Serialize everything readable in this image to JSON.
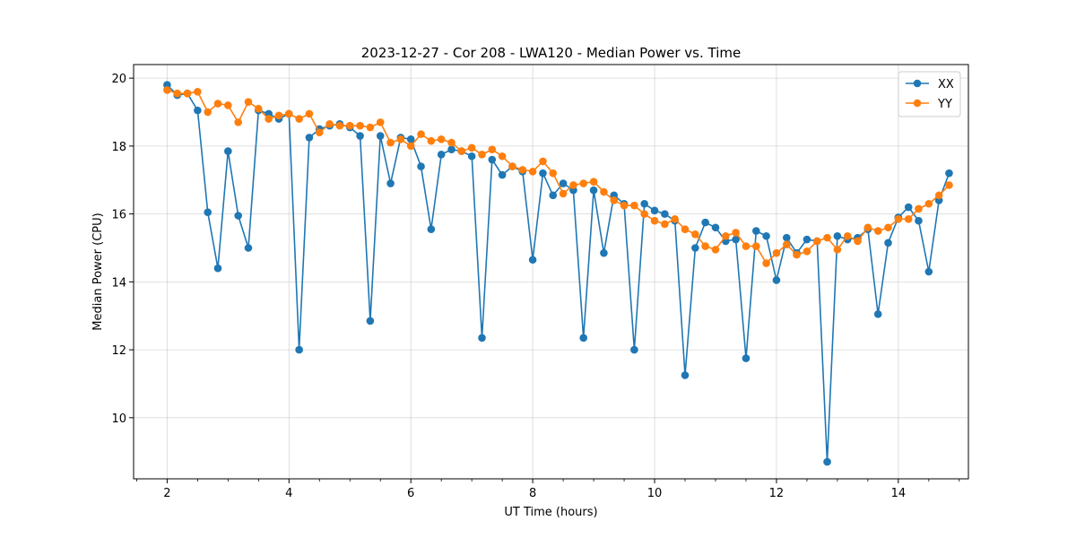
{
  "chart_data": {
    "type": "line",
    "title": "2023-12-27 - Cor 208 - LWA120 - Median Power vs. Time",
    "xlabel": "UT Time (hours)",
    "ylabel": "Median Power (CPU)",
    "xlim": [
      1.45,
      15.15
    ],
    "ylim": [
      8.2,
      20.4
    ],
    "xticks": [
      2,
      4,
      6,
      8,
      10,
      12,
      14
    ],
    "yticks": [
      10,
      12,
      14,
      16,
      18,
      20
    ],
    "grid": true,
    "legend_position": "top-right",
    "series": [
      {
        "name": "XX",
        "color": "#1f77b4",
        "x": [
          2.0,
          2.167,
          2.333,
          2.5,
          2.667,
          2.833,
          3.0,
          3.167,
          3.333,
          3.5,
          3.667,
          3.833,
          4.0,
          4.167,
          4.333,
          4.5,
          4.667,
          4.833,
          5.0,
          5.167,
          5.333,
          5.5,
          5.667,
          5.833,
          6.0,
          6.167,
          6.333,
          6.5,
          6.667,
          6.833,
          7.0,
          7.167,
          7.333,
          7.5,
          7.667,
          7.833,
          8.0,
          8.167,
          8.333,
          8.5,
          8.667,
          8.833,
          9.0,
          9.167,
          9.333,
          9.5,
          9.667,
          9.833,
          10.0,
          10.167,
          10.333,
          10.5,
          10.667,
          10.833,
          11.0,
          11.167,
          11.333,
          11.5,
          11.667,
          11.833,
          12.0,
          12.167,
          12.333,
          12.5,
          12.667,
          12.833,
          13.0,
          13.167,
          13.333,
          13.5,
          13.667,
          13.833,
          14.0,
          14.167,
          14.333,
          14.5,
          14.667,
          14.833
        ],
        "y": [
          19.8,
          19.5,
          19.55,
          19.05,
          16.05,
          14.4,
          17.85,
          15.95,
          15.0,
          19.05,
          18.95,
          18.8,
          18.95,
          12.0,
          18.25,
          18.5,
          18.6,
          18.65,
          18.55,
          18.3,
          12.85,
          18.3,
          16.9,
          18.25,
          18.2,
          17.4,
          15.55,
          17.75,
          17.9,
          17.85,
          17.7,
          12.35,
          17.6,
          17.15,
          17.4,
          17.25,
          14.65,
          17.2,
          16.55,
          16.9,
          16.7,
          12.35,
          16.7,
          14.85,
          16.55,
          16.3,
          12.0,
          16.3,
          16.1,
          16.0,
          15.8,
          11.25,
          15.0,
          15.75,
          15.6,
          15.2,
          15.25,
          11.75,
          15.5,
          15.35,
          14.05,
          15.3,
          14.85,
          15.25,
          15.2,
          8.7,
          15.35,
          15.25,
          15.3,
          15.55,
          13.05,
          15.15,
          15.9,
          16.2,
          15.8,
          14.3,
          16.4,
          17.2
        ]
      },
      {
        "name": "YY",
        "color": "#ff7f0e",
        "x": [
          2.0,
          2.167,
          2.333,
          2.5,
          2.667,
          2.833,
          3.0,
          3.167,
          3.333,
          3.5,
          3.667,
          3.833,
          4.0,
          4.167,
          4.333,
          4.5,
          4.667,
          4.833,
          5.0,
          5.167,
          5.333,
          5.5,
          5.667,
          5.833,
          6.0,
          6.167,
          6.333,
          6.5,
          6.667,
          6.833,
          7.0,
          7.167,
          7.333,
          7.5,
          7.667,
          7.833,
          8.0,
          8.167,
          8.333,
          8.5,
          8.667,
          8.833,
          9.0,
          9.167,
          9.333,
          9.5,
          9.667,
          9.833,
          10.0,
          10.167,
          10.333,
          10.5,
          10.667,
          10.833,
          11.0,
          11.167,
          11.333,
          11.5,
          11.667,
          11.833,
          12.0,
          12.167,
          12.333,
          12.5,
          12.667,
          12.833,
          13.0,
          13.167,
          13.333,
          13.5,
          13.667,
          13.833,
          14.0,
          14.167,
          14.333,
          14.5,
          14.667,
          14.833
        ],
        "y": [
          19.65,
          19.55,
          19.55,
          19.6,
          19.0,
          19.25,
          19.2,
          18.7,
          19.3,
          19.1,
          18.8,
          18.9,
          18.95,
          18.8,
          18.95,
          18.4,
          18.65,
          18.6,
          18.6,
          18.6,
          18.55,
          18.7,
          18.1,
          18.2,
          18.0,
          18.35,
          18.15,
          18.2,
          18.1,
          17.85,
          17.95,
          17.75,
          17.9,
          17.7,
          17.4,
          17.3,
          17.25,
          17.55,
          17.2,
          16.6,
          16.85,
          16.9,
          16.95,
          16.65,
          16.4,
          16.25,
          16.25,
          16.0,
          15.8,
          15.7,
          15.85,
          15.55,
          15.4,
          15.05,
          14.95,
          15.35,
          15.45,
          15.05,
          15.05,
          14.55,
          14.85,
          15.1,
          14.8,
          14.9,
          15.2,
          15.3,
          14.95,
          15.35,
          15.2,
          15.6,
          15.5,
          15.6,
          15.85,
          15.85,
          16.15,
          16.3,
          16.55,
          16.85
        ]
      }
    ]
  }
}
